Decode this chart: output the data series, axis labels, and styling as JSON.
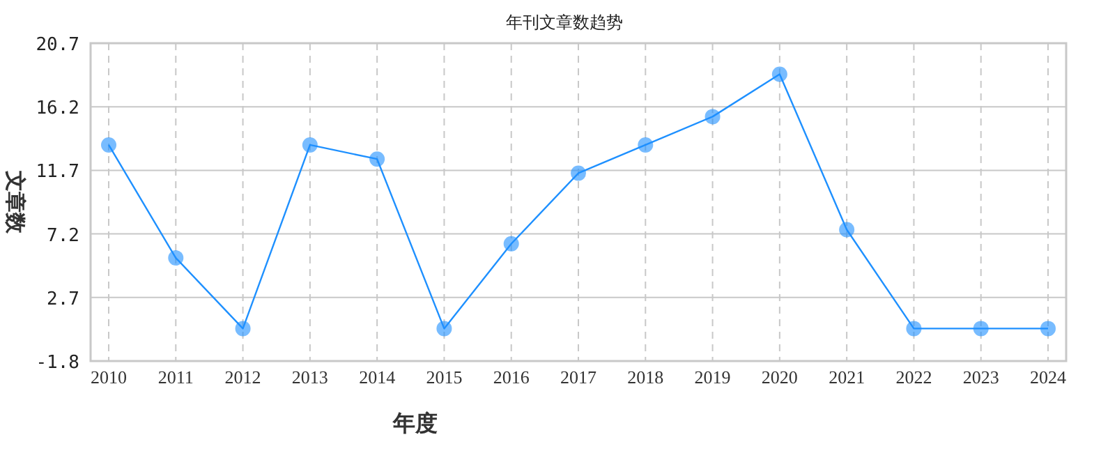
{
  "chart_data": {
    "type": "line",
    "title": "年刊文章数趋势",
    "xlabel": "年度",
    "ylabel": "文章数",
    "categories": [
      "2010",
      "2011",
      "2012",
      "2013",
      "2014",
      "2015",
      "2016",
      "2017",
      "2018",
      "2019",
      "2020",
      "2021",
      "2022",
      "2023",
      "2024"
    ],
    "series": [
      {
        "color": "#1e90ff",
        "values": [
          13.5,
          5.5,
          0.5,
          13.5,
          12.5,
          0.5,
          6.5,
          11.5,
          13.5,
          15.5,
          18.5,
          7.5,
          0.5,
          0.5,
          0.5
        ]
      }
    ],
    "ylim": [
      -1.8,
      20.7
    ],
    "yticks": [
      -1.8,
      2.7,
      7.2,
      11.7,
      16.2,
      20.7
    ],
    "grid": true,
    "marker": "circle",
    "line_style": "solid"
  }
}
